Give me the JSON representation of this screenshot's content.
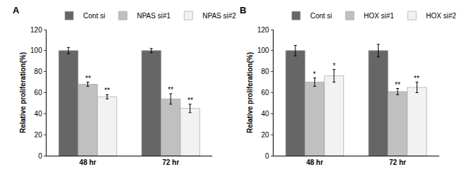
{
  "chart_data": [
    {
      "type": "bar",
      "panel": "A",
      "y_label": "Relative proliferation(%)",
      "categories": [
        "48 hr",
        "72 hr"
      ],
      "series": [
        {
          "name": "Cont si",
          "color": "#666666",
          "values": [
            100,
            100
          ],
          "errors": [
            3,
            2
          ],
          "significance": [
            null,
            null
          ]
        },
        {
          "name": "NPAS si#1",
          "color": "#c0c0c0",
          "values": [
            68,
            54
          ],
          "errors": [
            2,
            5
          ],
          "significance": [
            "**",
            "**"
          ]
        },
        {
          "name": "NPAS si#2",
          "color": "#f2f2f2",
          "values": [
            56,
            45
          ],
          "errors": [
            2,
            4
          ],
          "significance": [
            "**",
            "**"
          ]
        }
      ],
      "ylim": [
        0,
        120
      ],
      "yticks": [
        0,
        20,
        40,
        60,
        80,
        100,
        120
      ],
      "legend": "top"
    },
    {
      "type": "bar",
      "panel": "B",
      "y_label": "Relative proliferation(%)",
      "categories": [
        "48 hr",
        "72 hr"
      ],
      "series": [
        {
          "name": "Cont si",
          "color": "#666666",
          "values": [
            100,
            100
          ],
          "errors": [
            5,
            6
          ],
          "significance": [
            null,
            null
          ]
        },
        {
          "name": "HOX si#1",
          "color": "#c0c0c0",
          "values": [
            70,
            61
          ],
          "errors": [
            4,
            3
          ],
          "significance": [
            "*",
            "**"
          ]
        },
        {
          "name": "HOX si#2",
          "color": "#f2f2f2",
          "values": [
            76,
            65
          ],
          "errors": [
            6,
            5
          ],
          "significance": [
            "*",
            "**"
          ]
        }
      ],
      "ylim": [
        0,
        120
      ],
      "yticks": [
        0,
        20,
        40,
        60,
        80,
        100,
        120
      ],
      "legend": "top"
    }
  ]
}
